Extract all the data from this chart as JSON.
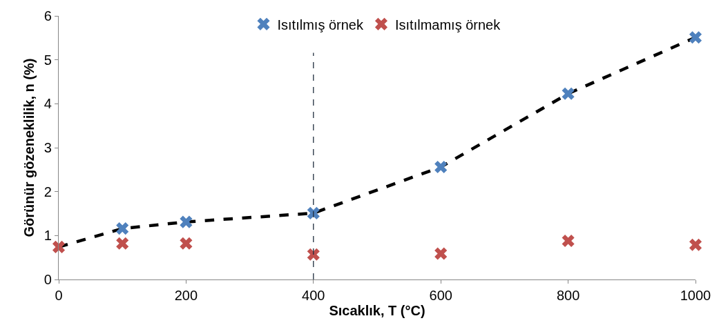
{
  "chart_data": {
    "type": "scatter",
    "xlabel": "Sıcaklık, T (°C)",
    "ylabel": "Görünür gözeneklilik, n (%)",
    "x": [
      0,
      100,
      200,
      400,
      600,
      800,
      1000
    ],
    "series": [
      {
        "type": "line",
        "color": "#000000",
        "line_style": "dashed",
        "marker": "none",
        "values": [
          0.74,
          1.16,
          1.31,
          1.51,
          2.56,
          4.23,
          5.51
        ]
      },
      {
        "name": "Isıtılmış örnek",
        "color": "#4f81bd",
        "marker": "cross",
        "values": [
          null,
          1.16,
          1.31,
          1.51,
          2.56,
          4.23,
          5.51
        ]
      },
      {
        "name": "Isıtılmamış örnek",
        "color": "#c0504d",
        "marker": "cross",
        "values": [
          0.74,
          0.82,
          0.82,
          0.57,
          0.59,
          0.88,
          0.79
        ]
      }
    ],
    "xlim": [
      0,
      1000
    ],
    "xticks": [
      0,
      200,
      400,
      600,
      800,
      1000
    ],
    "ylim": [
      0,
      6
    ],
    "yticks": [
      0,
      1,
      2,
      3,
      4,
      5,
      6
    ],
    "ref_lines": [
      {
        "axis": "x",
        "value": 400,
        "color": "#1f2d3d",
        "line_style": "dashed"
      }
    ],
    "grid": false,
    "legend": "top"
  }
}
